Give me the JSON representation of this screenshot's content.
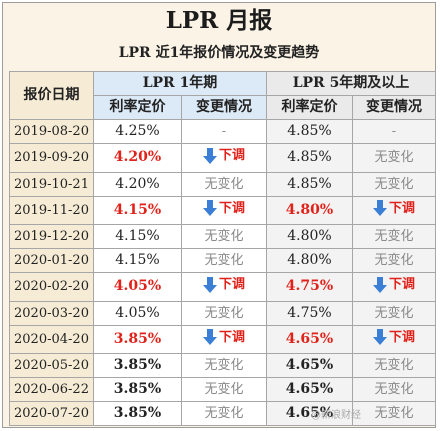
{
  "title": "LPR 月报",
  "subtitle": "LPR 近1年报价情况及变更趋势",
  "headers": {
    "date": "报价日期",
    "group1": "LPR 1年期",
    "group2": "LPR 5年期及以上",
    "rate": "利率定价",
    "change": "变更情况"
  },
  "rows": [
    {
      "date": "2019-08-20",
      "r1": "4.25%",
      "c1": "-",
      "r5": "4.85%",
      "c5": "-"
    },
    {
      "date": "2019-09-20",
      "r1": "4.20%",
      "c1": "下调",
      "r5": "4.85%",
      "c5": "无变化"
    },
    {
      "date": "2019-10-21",
      "r1": "4.20%",
      "c1": "无变化",
      "r5": "4.85%",
      "c5": "无变化"
    },
    {
      "date": "2019-11-20",
      "r1": "4.15%",
      "c1": "下调",
      "r5": "4.80%",
      "c5": "下调"
    },
    {
      "date": "2019-12-20",
      "r1": "4.15%",
      "c1": "无变化",
      "r5": "4.80%",
      "c5": "无变化"
    },
    {
      "date": "2020-01-20",
      "r1": "4.15%",
      "c1": "无变化",
      "r5": "4.80%",
      "c5": "无变化"
    },
    {
      "date": "2020-02-20",
      "r1": "4.05%",
      "c1": "下调",
      "r5": "4.75%",
      "c5": "下调"
    },
    {
      "date": "2020-03-20",
      "r1": "4.05%",
      "c1": "无变化",
      "r5": "4.75%",
      "c5": "无变化"
    },
    {
      "date": "2020-04-20",
      "r1": "3.85%",
      "c1": "下调",
      "r5": "4.65%",
      "c5": "下调"
    },
    {
      "date": "2020-05-20",
      "r1": "3.85%",
      "c1": "无变化",
      "r5": "4.65%",
      "c5": "无变化"
    },
    {
      "date": "2020-06-22",
      "r1": "3.85%",
      "c1": "无变化",
      "r5": "4.65%",
      "c5": "无变化"
    },
    {
      "date": "2020-07-20",
      "r1": "3.85%",
      "c1": "无变化",
      "r5": "4.65%",
      "c5": "无变化"
    }
  ],
  "watermark": "@新浪财经",
  "colors": {
    "down": "#e0221a",
    "arrow": "#3a7fd5",
    "unchanged": "#8a8a8a"
  }
}
